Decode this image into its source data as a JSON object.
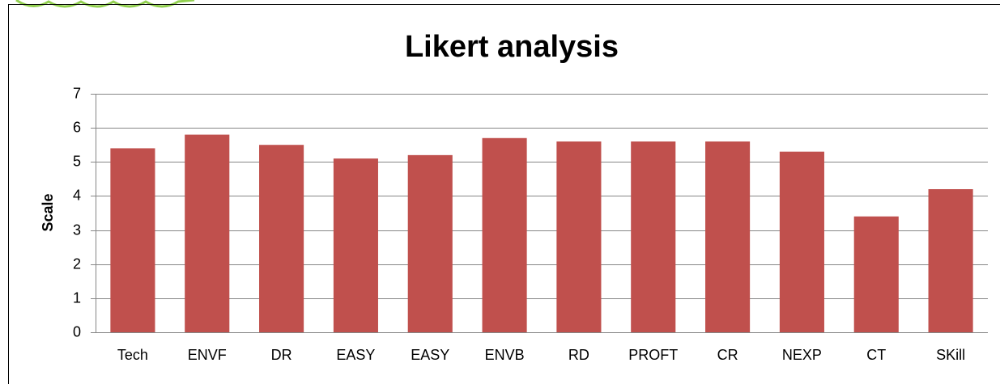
{
  "chart_data": {
    "type": "bar",
    "title": "Likert analysis",
    "y_label": "Scale",
    "categories": [
      "Tech",
      "ENVF",
      "DR",
      "EASY",
      "EASY",
      "ENVB",
      "RD",
      "PROFT",
      "CR",
      "NEXP",
      "CT",
      "SKill"
    ],
    "values": [
      5.4,
      5.8,
      5.5,
      5.1,
      5.2,
      5.7,
      5.6,
      5.6,
      5.6,
      5.3,
      3.4,
      4.2
    ],
    "color": "#c0504d",
    "ylim": [
      0,
      7
    ],
    "yticks": [
      0,
      1,
      2,
      3,
      4,
      5,
      6,
      7
    ],
    "grid": true
  }
}
